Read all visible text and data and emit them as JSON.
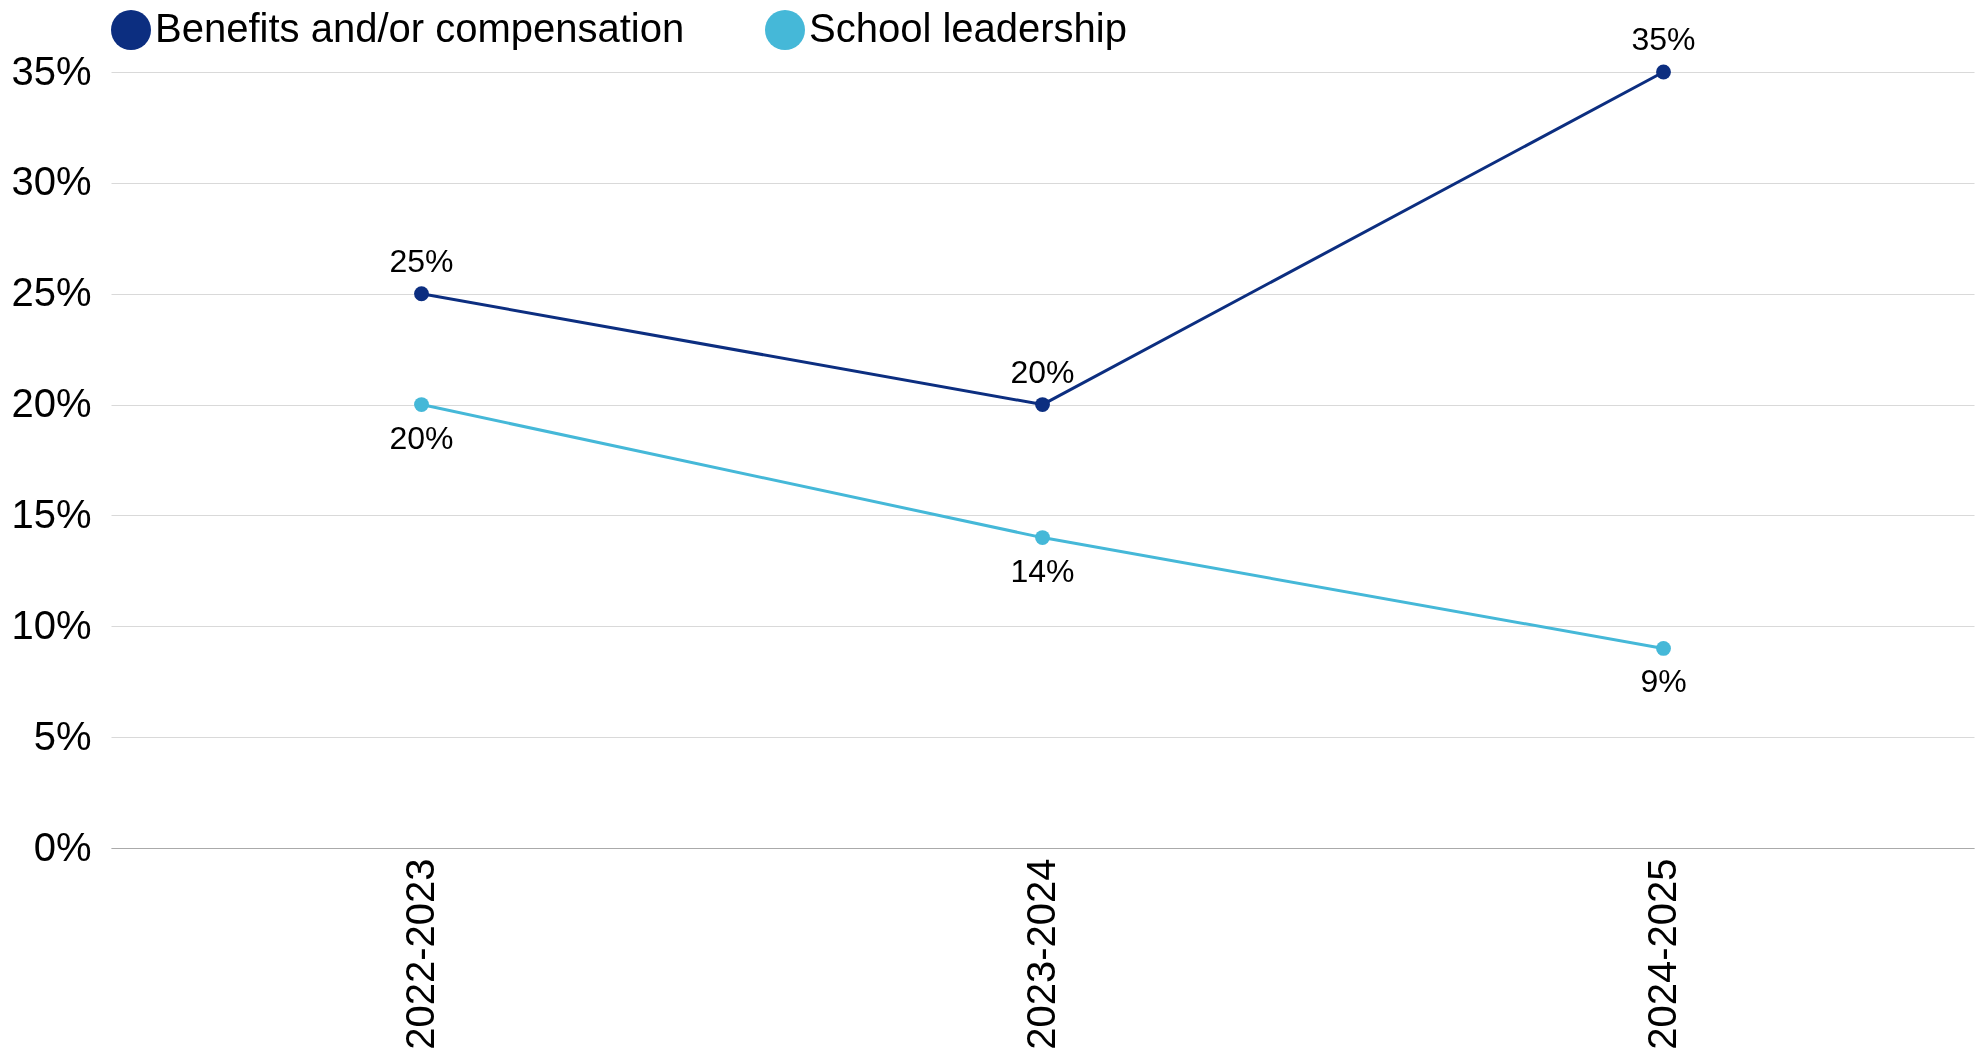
{
  "chart_data": {
    "type": "line",
    "categories": [
      "2022-2023",
      "2023-2024",
      "2024-2025"
    ],
    "series": [
      {
        "name": "Benefits and/or compensation",
        "color": "#0c2e80",
        "values": [
          25,
          20,
          35
        ],
        "value_labels": [
          "25%",
          "20%",
          "35%"
        ]
      },
      {
        "name": "School leadership",
        "color": "#45b8d8",
        "values": [
          20,
          14,
          9
        ],
        "value_labels": [
          "20%",
          "14%",
          "9%"
        ]
      }
    ],
    "ylim": [
      0,
      35
    ],
    "yticks": [
      {
        "value": 0,
        "label": "0%"
      },
      {
        "value": 5,
        "label": "5%"
      },
      {
        "value": 10,
        "label": "10%"
      },
      {
        "value": 15,
        "label": "15%"
      },
      {
        "value": 20,
        "label": "20%"
      },
      {
        "value": 25,
        "label": "25%"
      },
      {
        "value": 30,
        "label": "30%"
      },
      {
        "value": 35,
        "label": "35%"
      }
    ],
    "grid": "y",
    "legend": "top",
    "marker": "circle",
    "line_style": "solid"
  }
}
